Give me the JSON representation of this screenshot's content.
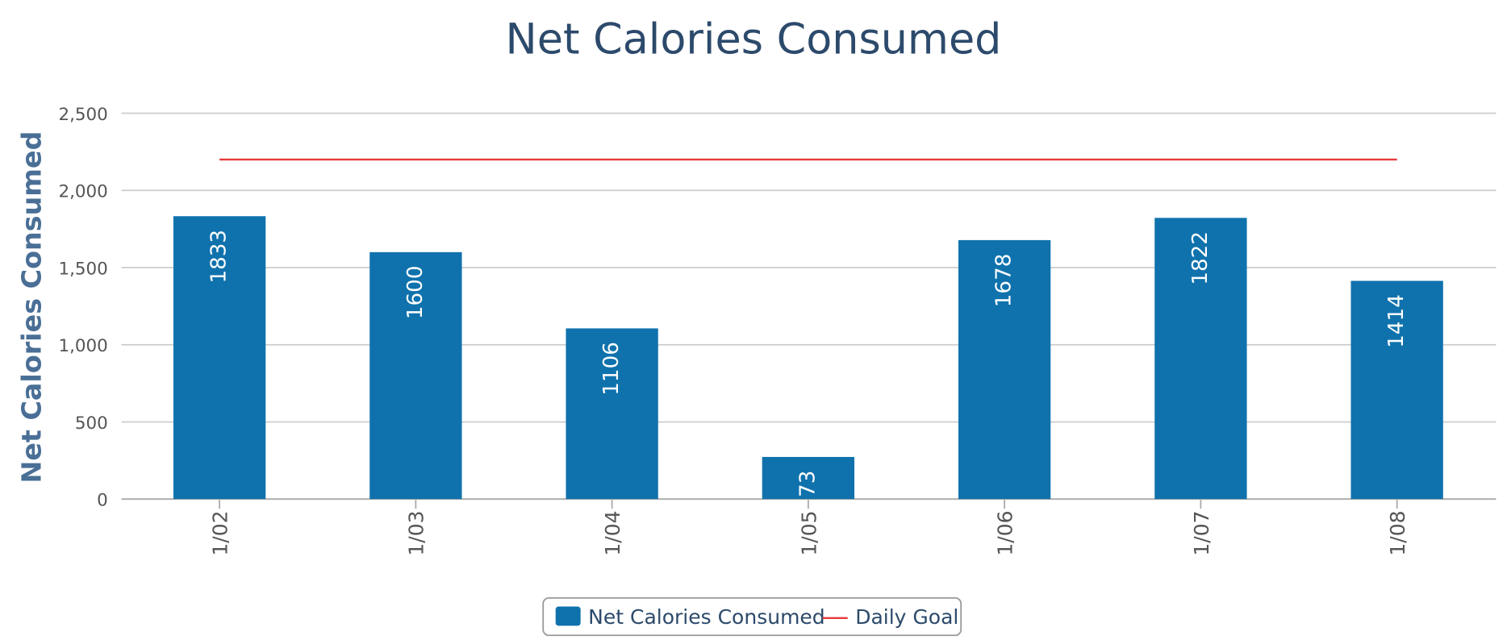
{
  "chart_data": {
    "type": "bar",
    "title": "Net Calories Consumed",
    "y_label": "Net Calories Consumed",
    "categories": [
      "1/02",
      "1/03",
      "1/04",
      "1/05",
      "1/06",
      "1/07",
      "1/08"
    ],
    "series": [
      {
        "name": "Net Calories Consumed",
        "type": "bar",
        "color": "#0f72ad",
        "values": [
          1833,
          1600,
          1106,
          273,
          1678,
          1822,
          1414
        ]
      },
      {
        "name": "Daily Goal",
        "type": "line",
        "color": "#e8393b",
        "values": [
          2200,
          2200,
          2200,
          2200,
          2200,
          2200,
          2200
        ]
      }
    ],
    "ylim": [
      0,
      2500
    ],
    "yticks": [
      0,
      500,
      {
        "value": 1000,
        "label": "1,000"
      },
      {
        "value": 1500,
        "label": "1,500"
      },
      {
        "value": 2000,
        "label": "2,000"
      },
      {
        "value": 2500,
        "label": "2,500"
      }
    ],
    "grid": true,
    "legend": "bottom"
  }
}
